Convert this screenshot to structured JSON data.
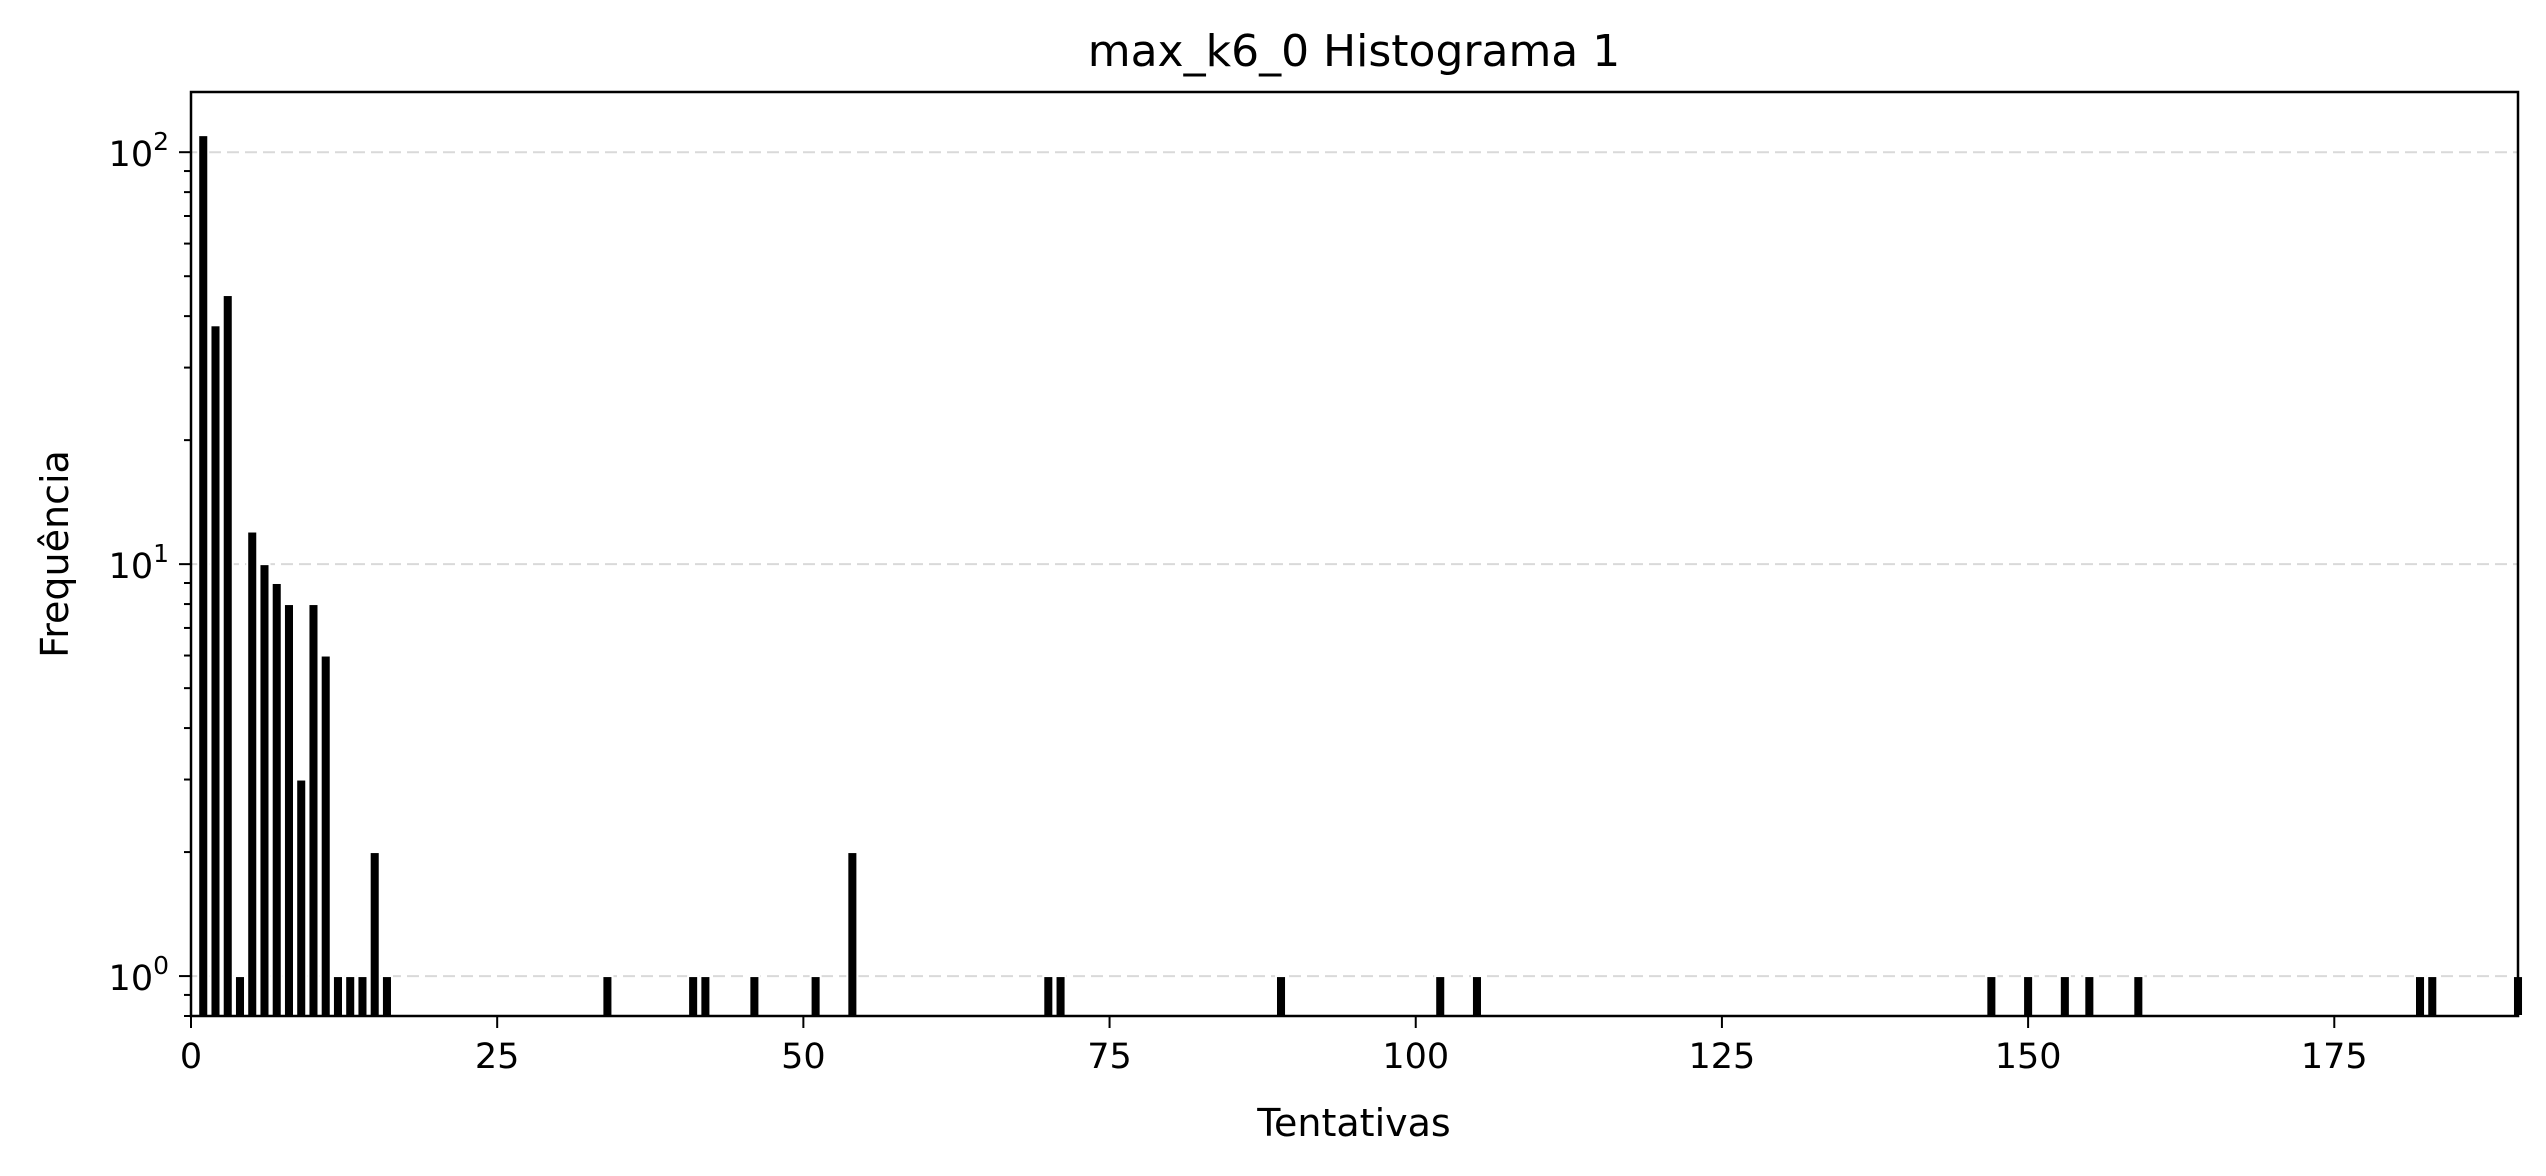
{
  "chart_data": {
    "type": "bar",
    "title": "max_k6_0 Histograma 1",
    "xlabel": "Tentativas",
    "ylabel": "Frequência",
    "yscale": "log",
    "xlim": [
      0,
      190
    ],
    "ylim": [
      0.8,
      140
    ],
    "grid": "y-major-dashed",
    "bar_color": "#000000",
    "bar_edge_color": "#ffffff",
    "grid_color": "#d9d9d9",
    "x": [
      1,
      2,
      3,
      4,
      5,
      6,
      7,
      8,
      9,
      10,
      11,
      12,
      13,
      14,
      15,
      16,
      34,
      41,
      42,
      46,
      51,
      54,
      70,
      71,
      89,
      102,
      105,
      147,
      150,
      153,
      155,
      159,
      182,
      183,
      190
    ],
    "values": [
      110,
      38,
      45,
      1,
      12,
      10,
      9,
      8,
      3,
      8,
      6,
      1,
      1,
      1,
      2,
      1,
      1,
      1,
      1,
      1,
      1,
      2,
      1,
      1,
      1,
      1,
      1,
      1,
      1,
      1,
      1,
      1,
      1,
      1,
      1
    ],
    "x_ticks": [
      "0",
      "25",
      "50",
      "75",
      "100",
      "125",
      "150",
      "175"
    ],
    "y_ticks": [
      {
        "base": "10",
        "exp": "0"
      },
      {
        "base": "10",
        "exp": "1"
      },
      {
        "base": "10",
        "exp": "2"
      }
    ]
  }
}
